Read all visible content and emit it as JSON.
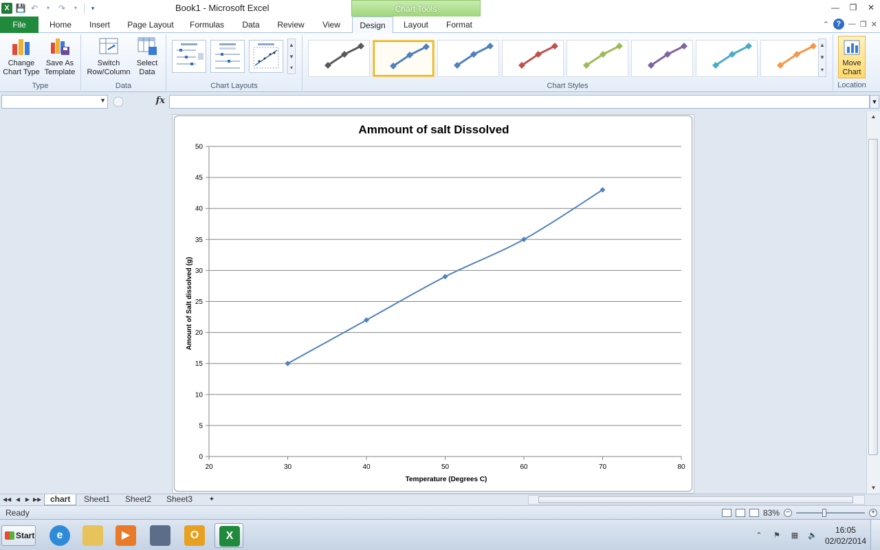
{
  "window": {
    "title": "Book1  -  Microsoft Excel",
    "contextual_tab_group": "Chart Tools"
  },
  "qat": {
    "icons": [
      "excel-logo-icon",
      "save-icon",
      "undo-icon",
      "redo-icon",
      "customize-icon"
    ]
  },
  "tabs": [
    {
      "label": "File"
    },
    {
      "label": "Home"
    },
    {
      "label": "Insert"
    },
    {
      "label": "Page Layout"
    },
    {
      "label": "Formulas"
    },
    {
      "label": "Data"
    },
    {
      "label": "Review"
    },
    {
      "label": "View"
    },
    {
      "label": "Design",
      "active": true
    },
    {
      "label": "Layout"
    },
    {
      "label": "Format"
    }
  ],
  "ribbon": {
    "type_group": {
      "label": "Type",
      "change_chart_type": "Change Chart Type",
      "save_as_template": "Save As Template"
    },
    "data_group": {
      "label": "Data",
      "switch_row_column": "Switch Row/Column",
      "select_data": "Select Data"
    },
    "layouts_group": {
      "label": "Chart Layouts"
    },
    "styles_group": {
      "label": "Chart Styles",
      "colors": [
        "#595959",
        "#4f81bd",
        "#4f81bd",
        "#c0504d",
        "#9bbb59",
        "#8064a2",
        "#4bacc6",
        "#f79646"
      ],
      "selected_index": 1
    },
    "location_group": {
      "label": "Location",
      "move_chart": "Move Chart"
    }
  },
  "formula_bar": {
    "name_box": "",
    "fx": "fx",
    "formula": ""
  },
  "chart_data": {
    "type": "scatter",
    "title": "Ammount of salt Dissolved",
    "xlabel": "Temperature (Degrees C)",
    "ylabel": "Amount of Salt dissolved (g)",
    "x": [
      30,
      40,
      50,
      60,
      70
    ],
    "y": [
      15,
      22,
      29,
      35,
      43
    ],
    "xlim": [
      20,
      80
    ],
    "ylim": [
      0,
      50
    ],
    "xticks": [
      20,
      30,
      40,
      50,
      60,
      70,
      80
    ],
    "yticks": [
      0,
      5,
      10,
      15,
      20,
      25,
      30,
      35,
      40,
      45,
      50
    ],
    "grid": "horizontal",
    "line": "smooth",
    "marker": "diamond",
    "color": "#4f81bd"
  },
  "sheets": [
    {
      "label": "chart",
      "active": true
    },
    {
      "label": "Sheet1"
    },
    {
      "label": "Sheet2"
    },
    {
      "label": "Sheet3"
    }
  ],
  "status": {
    "text": "Ready",
    "zoom": "83%",
    "zoom_percent": 83
  },
  "taskbar": {
    "start_label": "Start",
    "apps": [
      "internet-explorer-icon",
      "file-explorer-icon",
      "media-player-icon",
      "monitor-app-icon",
      "outlook-icon",
      "excel-taskbar-icon"
    ],
    "active_app": "excel-taskbar-icon",
    "time": "16:05",
    "date": "02/02/2014"
  }
}
